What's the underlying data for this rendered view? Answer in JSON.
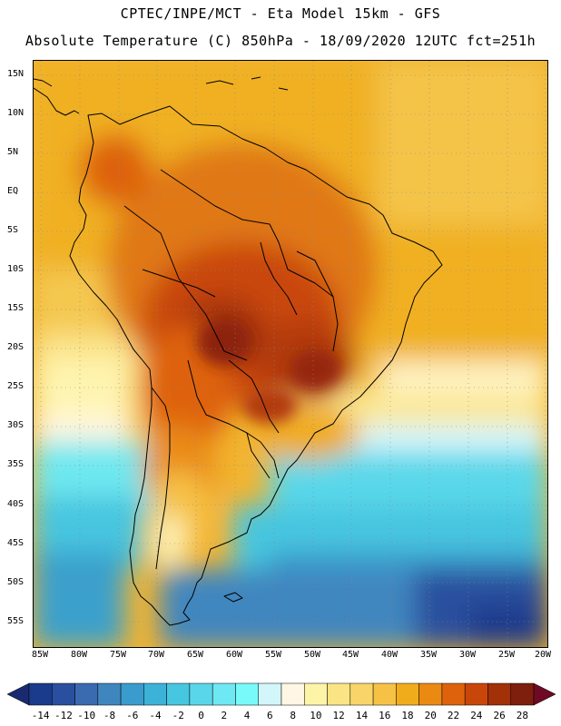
{
  "header": {
    "line1": "CPTEC/INPE/MCT -  Eta Model 15km - GFS",
    "line2": "Absolute Temperature (C) 850hPa - 18/09/2020 12UTC fct=251h"
  },
  "axes": {
    "lat_labels": [
      "15N",
      "10N",
      "5N",
      "EQ",
      "5S",
      "10S",
      "15S",
      "20S",
      "25S",
      "30S",
      "35S",
      "40S",
      "45S",
      "50S",
      "55S"
    ],
    "lon_labels": [
      "85W",
      "80W",
      "75W",
      "70W",
      "65W",
      "60W",
      "55W",
      "50W",
      "45W",
      "40W",
      "35W",
      "30W",
      "25W",
      "20W"
    ]
  },
  "colorbar": {
    "ticks": [
      "-14",
      "-12",
      "-10",
      "-8",
      "-6",
      "-4",
      "-2",
      "0",
      "2",
      "4",
      "6",
      "8",
      "10",
      "12",
      "14",
      "16",
      "18",
      "20",
      "22",
      "24",
      "26",
      "28"
    ],
    "colors": [
      "#1a3a8c",
      "#2a4f9e",
      "#3a6ab0",
      "#3f86bf",
      "#3a9ccc",
      "#3cb2d8",
      "#46c6e0",
      "#5ad6ea",
      "#6ee8f2",
      "#78fafa",
      "#d2f6fa",
      "#fff7e4",
      "#fef4a8",
      "#fbe484",
      "#f9d468",
      "#f6c246",
      "#f1ac1c",
      "#ea8a12",
      "#de620c",
      "#c9460a",
      "#a23008",
      "#7e1e0c"
    ],
    "left_arrow": "#1a2a6e",
    "right_arrow": "#6e0a24"
  }
}
